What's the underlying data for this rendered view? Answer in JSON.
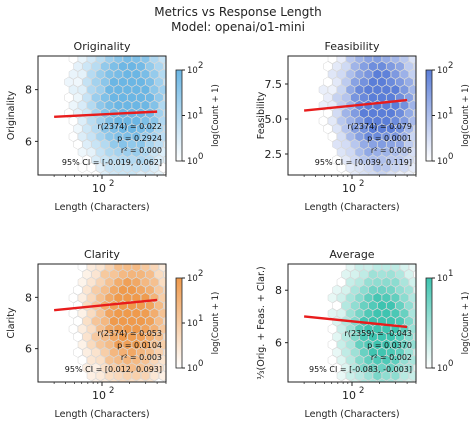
{
  "figure": {
    "title": "Metrics vs Response Length",
    "subtitle": "Model: openai/o1-mini"
  },
  "colors": {
    "originality": "#6bb6e4",
    "feasibility": "#5b7ed8",
    "clarity": "#ef9a4c",
    "average": "#3ec4b0",
    "regression": "#e81c1c"
  },
  "chart_data": [
    {
      "type": "scatter",
      "title": "Originality",
      "xlabel": "Length (Characters)",
      "ylabel": "Originality",
      "x_scale": "log",
      "xticks": [
        {
          "value": 100,
          "base": "10",
          "exp": "2"
        }
      ],
      "yticks": [
        6,
        8
      ],
      "ylim": [
        4.7,
        9.3
      ],
      "regression_line": {
        "x_start": 30,
        "y_start": 6.95,
        "x_end": 400,
        "y_end": 7.15
      },
      "stats": [
        "r(2374) = 0.022",
        "p = 0.2924",
        "r² = 0.000",
        "95% CI = [-0.019, 0.062]"
      ],
      "colorbar": {
        "label": "log(Count + 1)",
        "ticks": [
          {
            "base": "10",
            "exp": "0"
          },
          {
            "base": "10",
            "exp": "1"
          },
          {
            "base": "10",
            "exp": "2"
          }
        ]
      }
    },
    {
      "type": "scatter",
      "title": "Feasibility",
      "xlabel": "Length (Characters)",
      "ylabel": "Feasibility",
      "x_scale": "log",
      "xticks": [
        {
          "value": 100,
          "base": "10",
          "exp": "2"
        }
      ],
      "yticks": [
        2.5,
        5.0,
        7.5
      ],
      "ylim": [
        1.0,
        9.5
      ],
      "regression_line": {
        "x_start": 30,
        "y_start": 5.6,
        "x_end": 400,
        "y_end": 6.35
      },
      "stats": [
        "r(2374) = 0.079",
        "p = 0.0001",
        "r² = 0.006",
        "95% CI = [0.039, 0.119]"
      ],
      "colorbar": {
        "label": "log(Count + 1)",
        "ticks": [
          {
            "base": "10",
            "exp": "0"
          },
          {
            "base": "10",
            "exp": "1"
          },
          {
            "base": "10",
            "exp": "2"
          }
        ]
      }
    },
    {
      "type": "scatter",
      "title": "Clarity",
      "xlabel": "Length (Characters)",
      "ylabel": "Clarity",
      "x_scale": "log",
      "xticks": [
        {
          "value": 100,
          "base": "10",
          "exp": "2"
        }
      ],
      "yticks": [
        6,
        8
      ],
      "ylim": [
        4.7,
        9.3
      ],
      "regression_line": {
        "x_start": 30,
        "y_start": 7.5,
        "x_end": 400,
        "y_end": 7.9
      },
      "stats": [
        "r(2374) = 0.053",
        "p = 0.0104",
        "r² = 0.003",
        "95% CI = [0.012, 0.093]"
      ],
      "colorbar": {
        "label": "log(Count + 1)",
        "ticks": [
          {
            "base": "10",
            "exp": "0"
          },
          {
            "base": "10",
            "exp": "1"
          },
          {
            "base": "10",
            "exp": "2"
          }
        ]
      }
    },
    {
      "type": "scatter",
      "title": "Average",
      "xlabel": "Length (Characters)",
      "ylabel": "⅓(Orig. + Feas. + Clar.)",
      "x_scale": "log",
      "xticks": [
        {
          "value": 100,
          "base": "10",
          "exp": "2"
        }
      ],
      "yticks": [
        6,
        8
      ],
      "ylim": [
        4.5,
        9.0
      ],
      "regression_line": {
        "x_start": 30,
        "y_start": 7.0,
        "x_end": 400,
        "y_end": 6.6
      },
      "stats": [
        "r(2359) = -0.043",
        "p = 0.0370",
        "r² = 0.002",
        "95% CI = [-0.083, -0.003]"
      ],
      "colorbar": {
        "label": "log(Count + 1)",
        "ticks": [
          {
            "base": "10",
            "exp": "0"
          },
          {
            "base": "10",
            "exp": "1"
          }
        ]
      }
    }
  ]
}
